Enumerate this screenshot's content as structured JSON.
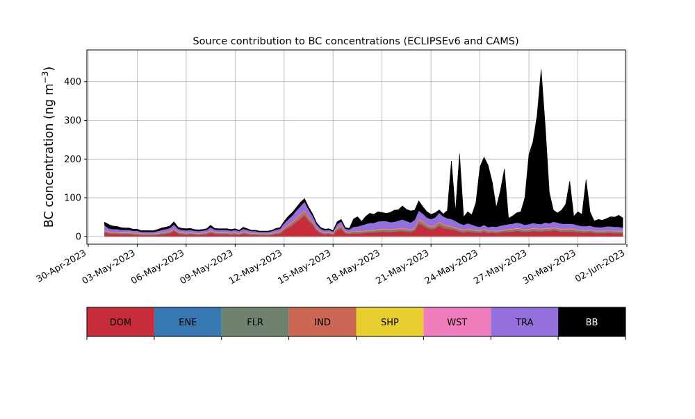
{
  "chart_data": {
    "type": "area",
    "stacked": true,
    "title": "Source contribution to BC concentrations (ECLIPSEv6 and CAMS)",
    "ylabel": "BC concentration (ng m",
    "ylabel_sup": "−3",
    "ylabel_close": ")",
    "xlabel": "",
    "xlim": [
      "2023-04-29T22:00",
      "2023-06-01T22:00"
    ],
    "ylim": [
      -20,
      482
    ],
    "grid": true,
    "x_ticks": [
      "30-Apr-2023",
      "03-May-2023",
      "06-May-2023",
      "09-May-2023",
      "12-May-2023",
      "15-May-2023",
      "18-May-2023",
      "21-May-2023",
      "24-May-2023",
      "27-May-2023",
      "30-May-2023",
      "02-Jun-2023"
    ],
    "x_tick_values": [
      "2023-04-30",
      "2023-05-03",
      "2023-05-06",
      "2023-05-09",
      "2023-05-12",
      "2023-05-15",
      "2023-05-18",
      "2023-05-21",
      "2023-05-24",
      "2023-05-27",
      "2023-05-30",
      "2023-06-02"
    ],
    "y_ticks": [
      0,
      100,
      200,
      300,
      400
    ],
    "legend": {
      "placement": "bottom",
      "items": [
        {
          "label": "DOM",
          "color": "#c72c3a"
        },
        {
          "label": "ENE",
          "color": "#3878b2"
        },
        {
          "label": "FLR",
          "color": "#6f8270"
        },
        {
          "label": "IND",
          "color": "#cc6655"
        },
        {
          "label": "SHP",
          "color": "#e6cf2e"
        },
        {
          "label": "WST",
          "color": "#f17cbd"
        },
        {
          "label": "TRA",
          "color": "#9370db"
        },
        {
          "label": "BB",
          "color": "#000000"
        }
      ]
    },
    "x": [
      "2023-05-01T00:00",
      "2023-05-01T06:00",
      "2023-05-01T12:00",
      "2023-05-01T18:00",
      "2023-05-02T00:00",
      "2023-05-02T06:00",
      "2023-05-02T12:00",
      "2023-05-02T18:00",
      "2023-05-03T00:00",
      "2023-05-03T06:00",
      "2023-05-03T12:00",
      "2023-05-03T18:00",
      "2023-05-04T00:00",
      "2023-05-04T06:00",
      "2023-05-04T12:00",
      "2023-05-04T18:00",
      "2023-05-05T00:00",
      "2023-05-05T06:00",
      "2023-05-05T12:00",
      "2023-05-05T18:00",
      "2023-05-06T00:00",
      "2023-05-06T06:00",
      "2023-05-06T12:00",
      "2023-05-06T18:00",
      "2023-05-07T00:00",
      "2023-05-07T06:00",
      "2023-05-07T12:00",
      "2023-05-07T18:00",
      "2023-05-08T00:00",
      "2023-05-08T06:00",
      "2023-05-08T12:00",
      "2023-05-08T18:00",
      "2023-05-09T00:00",
      "2023-05-09T06:00",
      "2023-05-09T12:00",
      "2023-05-09T18:00",
      "2023-05-10T00:00",
      "2023-05-10T06:00",
      "2023-05-10T12:00",
      "2023-05-10T18:00",
      "2023-05-11T00:00",
      "2023-05-11T06:00",
      "2023-05-11T12:00",
      "2023-05-11T18:00",
      "2023-05-12T00:00",
      "2023-05-12T06:00",
      "2023-05-12T12:00",
      "2023-05-12T18:00",
      "2023-05-13T00:00",
      "2023-05-13T06:00",
      "2023-05-13T12:00",
      "2023-05-13T18:00",
      "2023-05-14T00:00",
      "2023-05-14T06:00",
      "2023-05-14T12:00",
      "2023-05-14T18:00",
      "2023-05-15T00:00",
      "2023-05-15T06:00",
      "2023-05-15T12:00",
      "2023-05-15T18:00",
      "2023-05-16T00:00",
      "2023-05-16T06:00",
      "2023-05-16T12:00",
      "2023-05-16T18:00",
      "2023-05-17T00:00",
      "2023-05-17T06:00",
      "2023-05-17T12:00",
      "2023-05-17T18:00",
      "2023-05-18T00:00",
      "2023-05-18T06:00",
      "2023-05-18T12:00",
      "2023-05-18T18:00",
      "2023-05-19T00:00",
      "2023-05-19T06:00",
      "2023-05-19T12:00",
      "2023-05-19T18:00",
      "2023-05-20T00:00",
      "2023-05-20T06:00",
      "2023-05-20T12:00",
      "2023-05-20T18:00",
      "2023-05-21T00:00",
      "2023-05-21T06:00",
      "2023-05-21T12:00",
      "2023-05-21T18:00",
      "2023-05-22T00:00",
      "2023-05-22T06:00",
      "2023-05-22T12:00",
      "2023-05-22T18:00",
      "2023-05-23T00:00",
      "2023-05-23T06:00",
      "2023-05-23T12:00",
      "2023-05-23T18:00",
      "2023-05-24T00:00",
      "2023-05-24T06:00",
      "2023-05-24T12:00",
      "2023-05-24T18:00",
      "2023-05-25T00:00",
      "2023-05-25T06:00",
      "2023-05-25T12:00",
      "2023-05-25T18:00",
      "2023-05-26T00:00",
      "2023-05-26T06:00",
      "2023-05-26T12:00",
      "2023-05-26T18:00",
      "2023-05-27T00:00",
      "2023-05-27T06:00",
      "2023-05-27T12:00",
      "2023-05-27T18:00",
      "2023-05-28T00:00",
      "2023-05-28T06:00",
      "2023-05-28T12:00",
      "2023-05-28T18:00",
      "2023-05-29T00:00",
      "2023-05-29T06:00",
      "2023-05-29T12:00",
      "2023-05-29T18:00",
      "2023-05-30T00:00",
      "2023-05-30T06:00",
      "2023-05-30T12:00",
      "2023-05-30T18:00",
      "2023-05-31T00:00",
      "2023-05-31T06:00",
      "2023-05-31T12:00",
      "2023-05-31T18:00",
      "2023-06-01T00:00",
      "2023-06-01T06:00",
      "2023-06-01T12:00",
      "2023-06-01T18:00"
    ],
    "series": [
      {
        "name": "DOM",
        "values": [
          10,
          7,
          6,
          6,
          5,
          5,
          5,
          4,
          4,
          3,
          3,
          3,
          3,
          4,
          5,
          6,
          8,
          14,
          7,
          5,
          4,
          5,
          4,
          4,
          4,
          5,
          9,
          6,
          5,
          5,
          5,
          4,
          5,
          4,
          7,
          5,
          4,
          4,
          3,
          3,
          3,
          4,
          6,
          7,
          16,
          22,
          28,
          37,
          45,
          54,
          40,
          30,
          15,
          8,
          5,
          6,
          4,
          16,
          20,
          8,
          6,
          8,
          7,
          8,
          9,
          10,
          10,
          11,
          12,
          12,
          11,
          12,
          13,
          14,
          12,
          11,
          15,
          33,
          28,
          22,
          18,
          20,
          28,
          22,
          20,
          18,
          16,
          12,
          10,
          12,
          11,
          10,
          9,
          12,
          8,
          10,
          8,
          10,
          11,
          12,
          12,
          14,
          13,
          11,
          12,
          14,
          13,
          12,
          14,
          13,
          16,
          14,
          12,
          12,
          13,
          12,
          11,
          10,
          10,
          11,
          9,
          8,
          8,
          9,
          9,
          8,
          8,
          8
        ]
      },
      {
        "name": "ENE",
        "values": [
          0.5,
          0.5,
          0.5,
          0.5,
          0.5,
          0.5,
          0.5,
          0.5,
          0.5,
          0.5,
          0.5,
          0.5,
          0.5,
          0.5,
          0.5,
          0.5,
          0.5,
          0.5,
          0.5,
          0.5,
          0.5,
          0.5,
          0.5,
          0.5,
          0.5,
          0.5,
          0.5,
          0.5,
          0.5,
          0.5,
          0.5,
          0.5,
          0.5,
          0.5,
          0.5,
          0.5,
          0.5,
          0.5,
          0.5,
          0.5,
          0.5,
          0.5,
          0.5,
          0.5,
          0.5,
          0.5,
          0.5,
          0.5,
          0.5,
          0.5,
          0.5,
          0.5,
          0.5,
          0.5,
          0.5,
          0.5,
          0.5,
          0.5,
          0.5,
          0.5,
          0.5,
          0.5,
          0.5,
          0.5,
          0.5,
          0.5,
          0.5,
          0.5,
          0.5,
          0.5,
          0.5,
          0.5,
          0.5,
          0.5,
          0.5,
          0.5,
          0.5,
          0.5,
          0.5,
          0.5,
          0.5,
          0.5,
          0.5,
          0.5,
          0.5,
          0.5,
          0.5,
          0.5,
          0.5,
          0.5,
          0.5,
          0.5,
          0.5,
          0.5,
          0.5,
          0.5,
          0.5,
          0.5,
          0.5,
          0.5,
          0.5,
          0.5,
          0.5,
          0.5,
          0.5,
          0.5,
          0.5,
          0.5,
          0.5,
          0.5,
          0.5,
          0.5,
          0.5,
          0.5,
          0.5,
          0.5,
          0.5,
          0.5,
          0.5,
          0.5,
          0.5,
          0.5,
          0.5,
          0.5,
          0.5,
          0.5,
          0.5,
          0.5
        ]
      },
      {
        "name": "FLR",
        "values": [
          2,
          2,
          2,
          2,
          2,
          2,
          2,
          2,
          2,
          2,
          2,
          2,
          2,
          2,
          2,
          2,
          2,
          2,
          2,
          2,
          2,
          2,
          2,
          2,
          2,
          2,
          2,
          2,
          2,
          2,
          2,
          2,
          2,
          2,
          2,
          2,
          2,
          2,
          2,
          2,
          2,
          2,
          2,
          2,
          2,
          2,
          3,
          3,
          3,
          3,
          3,
          2,
          2,
          2,
          2,
          2,
          2,
          3,
          3,
          2,
          2,
          3,
          3,
          3,
          3,
          3,
          3,
          3,
          3,
          3,
          3,
          3,
          3,
          3,
          3,
          3,
          3,
          4,
          4,
          3,
          3,
          3,
          4,
          4,
          3,
          3,
          3,
          3,
          3,
          3,
          3,
          3,
          3,
          3,
          3,
          3,
          3,
          3,
          3,
          3,
          3,
          3,
          3,
          3,
          3,
          3,
          3,
          3,
          3,
          3,
          3,
          3,
          3,
          3,
          3,
          3,
          3,
          3,
          3,
          3,
          3,
          3,
          3,
          3,
          3,
          3,
          3,
          3
        ]
      },
      {
        "name": "IND",
        "values": [
          3,
          2,
          2,
          2,
          2,
          2,
          2,
          2,
          2,
          1,
          1,
          1,
          1,
          1,
          2,
          2,
          2,
          3,
          2,
          2,
          2,
          2,
          2,
          1,
          2,
          2,
          3,
          2,
          2,
          2,
          2,
          2,
          2,
          1,
          2,
          2,
          1,
          1,
          1,
          1,
          1,
          1,
          2,
          2,
          4,
          5,
          6,
          7,
          8,
          9,
          7,
          5,
          3,
          2,
          2,
          2,
          1,
          3,
          4,
          2,
          2,
          2,
          2,
          2,
          2,
          2,
          2,
          3,
          3,
          3,
          3,
          3,
          3,
          3,
          3,
          2,
          3,
          6,
          5,
          4,
          4,
          4,
          5,
          4,
          4,
          4,
          3,
          3,
          3,
          3,
          3,
          2,
          2,
          3,
          2,
          2,
          2,
          2,
          2,
          3,
          3,
          3,
          3,
          2,
          3,
          3,
          3,
          3,
          3,
          3,
          3,
          3,
          3,
          3,
          3,
          3,
          2,
          2,
          2,
          2,
          2,
          2,
          2,
          2,
          2,
          2,
          2,
          2
        ]
      },
      {
        "name": "SHP",
        "values": [
          0.5,
          0.5,
          0.5,
          0.5,
          0.5,
          0.5,
          0.5,
          0.5,
          0.5,
          0.5,
          0.5,
          0.5,
          0.5,
          0.5,
          0.5,
          0.5,
          0.5,
          0.5,
          0.5,
          0.5,
          0.5,
          0.5,
          0.5,
          0.5,
          0.5,
          0.5,
          0.5,
          0.5,
          0.5,
          0.5,
          0.5,
          0.5,
          0.5,
          0.5,
          0.5,
          0.5,
          0.5,
          0.5,
          0.5,
          0.5,
          0.5,
          0.5,
          0.5,
          0.5,
          0.5,
          0.5,
          0.5,
          0.5,
          0.5,
          0.5,
          0.5,
          0.5,
          0.5,
          0.5,
          0.5,
          0.5,
          0.5,
          0.5,
          0.5,
          0.5,
          0.5,
          0.5,
          0.5,
          0.5,
          0.5,
          0.5,
          0.5,
          0.5,
          0.5,
          0.5,
          0.5,
          0.5,
          0.5,
          0.5,
          0.5,
          0.5,
          0.5,
          0.5,
          0.5,
          0.5,
          0.5,
          0.5,
          0.5,
          0.5,
          0.5,
          0.5,
          0.5,
          0.5,
          0.5,
          0.5,
          0.5,
          0.5,
          0.5,
          0.5,
          0.5,
          0.5,
          0.5,
          0.5,
          0.5,
          0.5,
          0.5,
          0.5,
          0.5,
          0.5,
          0.5,
          0.5,
          0.5,
          0.5,
          0.5,
          0.5,
          0.5,
          0.5,
          0.5,
          0.5,
          0.5,
          0.5,
          0.5,
          0.5,
          0.5,
          0.5,
          0.5,
          0.5,
          0.5,
          0.5,
          0.5,
          0.5,
          0.5,
          0.5
        ]
      },
      {
        "name": "WST",
        "values": [
          1,
          1,
          1,
          1,
          1,
          1,
          1,
          1,
          1,
          1,
          1,
          1,
          1,
          1,
          1,
          1,
          1,
          1,
          1,
          1,
          1,
          1,
          1,
          1,
          1,
          1,
          1,
          1,
          1,
          1,
          1,
          1,
          1,
          1,
          1,
          1,
          1,
          1,
          1,
          1,
          1,
          1,
          1,
          1,
          1,
          1,
          1,
          1,
          1,
          1,
          1,
          1,
          1,
          1,
          1,
          1,
          1,
          1,
          1,
          1,
          1,
          1,
          1,
          1,
          1,
          1,
          1,
          1,
          1,
          1,
          1,
          1,
          1,
          1,
          1,
          1,
          1,
          1,
          1,
          1,
          1,
          1,
          1,
          1,
          1,
          1,
          1,
          1,
          1,
          1,
          1,
          1,
          1,
          1,
          1,
          1,
          1,
          1,
          1,
          1,
          1,
          1,
          1,
          1,
          1,
          1,
          1,
          1,
          1,
          1,
          1,
          1,
          1,
          1,
          1,
          1,
          1,
          1,
          1,
          1,
          1,
          1,
          1,
          1,
          1,
          1,
          1,
          1
        ]
      },
      {
        "name": "TRA",
        "values": [
          12,
          8,
          7,
          7,
          6,
          6,
          6,
          5,
          5,
          4,
          4,
          4,
          4,
          5,
          6,
          7,
          8,
          10,
          7,
          6,
          6,
          6,
          5,
          5,
          5,
          6,
          8,
          6,
          6,
          6,
          6,
          5,
          6,
          5,
          7,
          6,
          5,
          5,
          4,
          4,
          4,
          5,
          6,
          7,
          10,
          13,
          15,
          18,
          20,
          22,
          18,
          14,
          9,
          6,
          5,
          5,
          4,
          8,
          10,
          6,
          6,
          10,
          12,
          14,
          16,
          18,
          18,
          20,
          20,
          20,
          18,
          18,
          20,
          22,
          20,
          18,
          20,
          22,
          20,
          18,
          18,
          20,
          22,
          20,
          18,
          18,
          16,
          14,
          12,
          14,
          12,
          10,
          9,
          10,
          9,
          9,
          10,
          11,
          12,
          12,
          13,
          14,
          13,
          12,
          12,
          13,
          12,
          12,
          14,
          13,
          14,
          14,
          13,
          13,
          12,
          12,
          11,
          10,
          10,
          10,
          9,
          9,
          9,
          10,
          10,
          10,
          10,
          8
        ]
      },
      {
        "name": "BB",
        "values": [
          8,
          10,
          8,
          7,
          6,
          5,
          5,
          4,
          4,
          3,
          3,
          3,
          3,
          4,
          5,
          5,
          5,
          7,
          4,
          4,
          4,
          4,
          3,
          3,
          3,
          3,
          5,
          3,
          3,
          3,
          3,
          3,
          3,
          2,
          4,
          3,
          2,
          2,
          2,
          2,
          2,
          2,
          3,
          3,
          5,
          8,
          8,
          8,
          10,
          8,
          6,
          5,
          4,
          3,
          3,
          3,
          2,
          6,
          5,
          3,
          3,
          20,
          25,
          10,
          20,
          25,
          22,
          25,
          22,
          20,
          25,
          30,
          28,
          35,
          30,
          30,
          25,
          25,
          18,
          15,
          12,
          12,
          8,
          6,
          20,
          150,
          25,
          180,
          20,
          30,
          25,
          60,
          155,
          175,
          160,
          115,
          50,
          90,
          145,
          15,
          20,
          25,
          30,
          70,
          180,
          210,
          280,
          400,
          250,
          80,
          30,
          25,
          35,
          50,
          110,
          20,
          35,
          30,
          120,
          35,
          15,
          20,
          18,
          20,
          25,
          25,
          30,
          25
        ]
      }
    ]
  }
}
